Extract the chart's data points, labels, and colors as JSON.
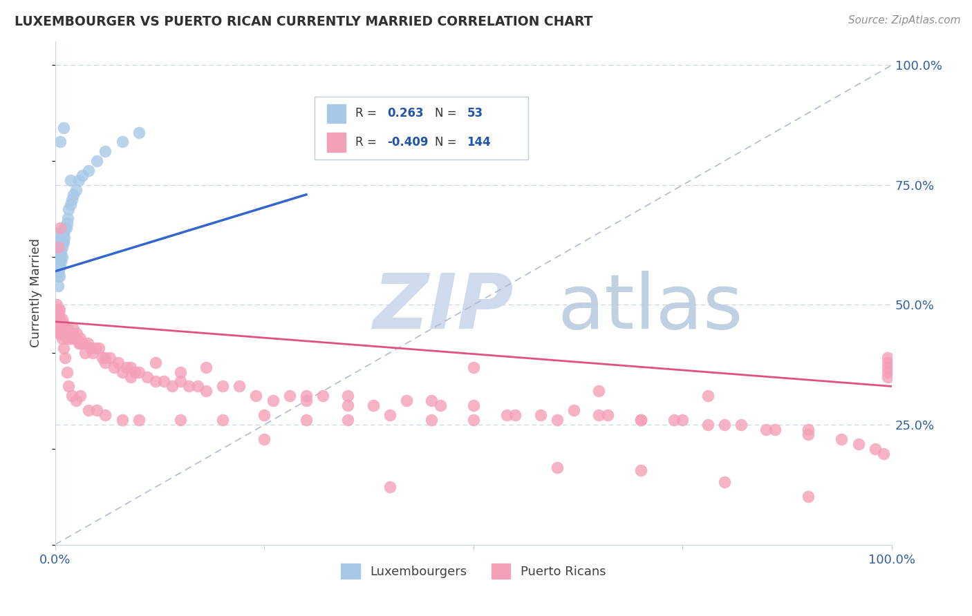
{
  "title": "LUXEMBOURGER VS PUERTO RICAN CURRENTLY MARRIED CORRELATION CHART",
  "source": "Source: ZipAtlas.com",
  "ylabel": "Currently Married",
  "right_ytick_labels": [
    "25.0%",
    "50.0%",
    "75.0%",
    "100.0%"
  ],
  "right_ytick_values": [
    0.25,
    0.5,
    0.75,
    1.0
  ],
  "xlim": [
    0.0,
    1.0
  ],
  "ylim": [
    0.0,
    1.05
  ],
  "R_lux": 0.263,
  "N_lux": 53,
  "R_pr": -0.409,
  "N_pr": 144,
  "lux_color": "#a8c8e8",
  "lux_line_color": "#3366cc",
  "pr_color": "#f4a0b8",
  "pr_line_color": "#e05080",
  "grid_color": "#c8d4e0",
  "watermark_zip_color": "#c8d8ec",
  "watermark_atlas_color": "#b8cce0",
  "legend_lux": "Luxembourgers",
  "legend_pr": "Puerto Ricans",
  "lux_x": [
    0.001,
    0.001,
    0.001,
    0.002,
    0.002,
    0.002,
    0.002,
    0.003,
    0.003,
    0.003,
    0.003,
    0.003,
    0.004,
    0.004,
    0.004,
    0.005,
    0.005,
    0.005,
    0.005,
    0.006,
    0.006,
    0.006,
    0.007,
    0.007,
    0.007,
    0.008,
    0.008,
    0.008,
    0.009,
    0.009,
    0.01,
    0.01,
    0.011,
    0.011,
    0.012,
    0.013,
    0.014,
    0.015,
    0.016,
    0.018,
    0.02,
    0.022,
    0.025,
    0.028,
    0.032,
    0.04,
    0.05,
    0.06,
    0.08,
    0.1,
    0.006,
    0.01,
    0.018
  ],
  "lux_y": [
    0.6,
    0.62,
    0.58,
    0.65,
    0.62,
    0.6,
    0.58,
    0.63,
    0.61,
    0.59,
    0.56,
    0.54,
    0.62,
    0.6,
    0.57,
    0.64,
    0.61,
    0.59,
    0.56,
    0.62,
    0.6,
    0.58,
    0.63,
    0.61,
    0.59,
    0.64,
    0.62,
    0.6,
    0.65,
    0.63,
    0.65,
    0.63,
    0.66,
    0.64,
    0.66,
    0.66,
    0.67,
    0.68,
    0.7,
    0.71,
    0.72,
    0.73,
    0.74,
    0.76,
    0.77,
    0.78,
    0.8,
    0.82,
    0.84,
    0.86,
    0.84,
    0.87,
    0.76
  ],
  "pr_x": [
    0.001,
    0.001,
    0.002,
    0.002,
    0.003,
    0.003,
    0.004,
    0.004,
    0.005,
    0.005,
    0.006,
    0.006,
    0.007,
    0.007,
    0.008,
    0.008,
    0.009,
    0.01,
    0.01,
    0.011,
    0.012,
    0.013,
    0.014,
    0.015,
    0.016,
    0.017,
    0.018,
    0.019,
    0.02,
    0.022,
    0.024,
    0.026,
    0.028,
    0.03,
    0.033,
    0.036,
    0.039,
    0.042,
    0.045,
    0.048,
    0.052,
    0.056,
    0.06,
    0.065,
    0.07,
    0.075,
    0.08,
    0.085,
    0.09,
    0.095,
    0.1,
    0.11,
    0.12,
    0.13,
    0.14,
    0.15,
    0.16,
    0.17,
    0.18,
    0.2,
    0.22,
    0.24,
    0.26,
    0.28,
    0.3,
    0.32,
    0.35,
    0.38,
    0.42,
    0.46,
    0.5,
    0.54,
    0.58,
    0.62,
    0.66,
    0.7,
    0.74,
    0.78,
    0.82,
    0.86,
    0.9,
    0.94,
    0.96,
    0.98,
    0.99,
    0.995,
    0.995,
    0.995,
    0.995,
    0.995,
    0.003,
    0.004,
    0.005,
    0.006,
    0.007,
    0.008,
    0.01,
    0.012,
    0.014,
    0.016,
    0.02,
    0.025,
    0.03,
    0.04,
    0.05,
    0.06,
    0.08,
    0.1,
    0.15,
    0.2,
    0.25,
    0.3,
    0.35,
    0.4,
    0.45,
    0.5,
    0.55,
    0.6,
    0.65,
    0.7,
    0.75,
    0.8,
    0.85,
    0.9,
    0.12,
    0.18,
    0.35,
    0.5,
    0.65,
    0.78,
    0.03,
    0.06,
    0.09,
    0.15,
    0.3,
    0.45,
    0.003,
    0.006,
    0.4,
    0.6,
    0.25,
    0.7,
    0.8,
    0.9
  ],
  "pr_y": [
    0.48,
    0.47,
    0.5,
    0.45,
    0.49,
    0.46,
    0.48,
    0.45,
    0.47,
    0.49,
    0.46,
    0.44,
    0.46,
    0.44,
    0.47,
    0.45,
    0.45,
    0.46,
    0.44,
    0.45,
    0.44,
    0.44,
    0.43,
    0.45,
    0.44,
    0.43,
    0.44,
    0.43,
    0.44,
    0.45,
    0.43,
    0.44,
    0.42,
    0.43,
    0.42,
    0.4,
    0.42,
    0.41,
    0.4,
    0.41,
    0.41,
    0.39,
    0.38,
    0.39,
    0.37,
    0.38,
    0.36,
    0.37,
    0.35,
    0.36,
    0.36,
    0.35,
    0.34,
    0.34,
    0.33,
    0.34,
    0.33,
    0.33,
    0.32,
    0.33,
    0.33,
    0.31,
    0.3,
    0.31,
    0.3,
    0.31,
    0.31,
    0.29,
    0.3,
    0.29,
    0.29,
    0.27,
    0.27,
    0.28,
    0.27,
    0.26,
    0.26,
    0.25,
    0.25,
    0.24,
    0.23,
    0.22,
    0.21,
    0.2,
    0.19,
    0.39,
    0.38,
    0.37,
    0.36,
    0.35,
    0.48,
    0.47,
    0.44,
    0.46,
    0.45,
    0.43,
    0.41,
    0.39,
    0.36,
    0.33,
    0.31,
    0.3,
    0.31,
    0.28,
    0.28,
    0.27,
    0.26,
    0.26,
    0.26,
    0.26,
    0.27,
    0.26,
    0.26,
    0.27,
    0.26,
    0.26,
    0.27,
    0.26,
    0.27,
    0.26,
    0.26,
    0.25,
    0.24,
    0.24,
    0.38,
    0.37,
    0.29,
    0.37,
    0.32,
    0.31,
    0.42,
    0.39,
    0.37,
    0.36,
    0.31,
    0.3,
    0.62,
    0.66,
    0.12,
    0.16,
    0.22,
    0.155,
    0.13,
    0.1
  ]
}
